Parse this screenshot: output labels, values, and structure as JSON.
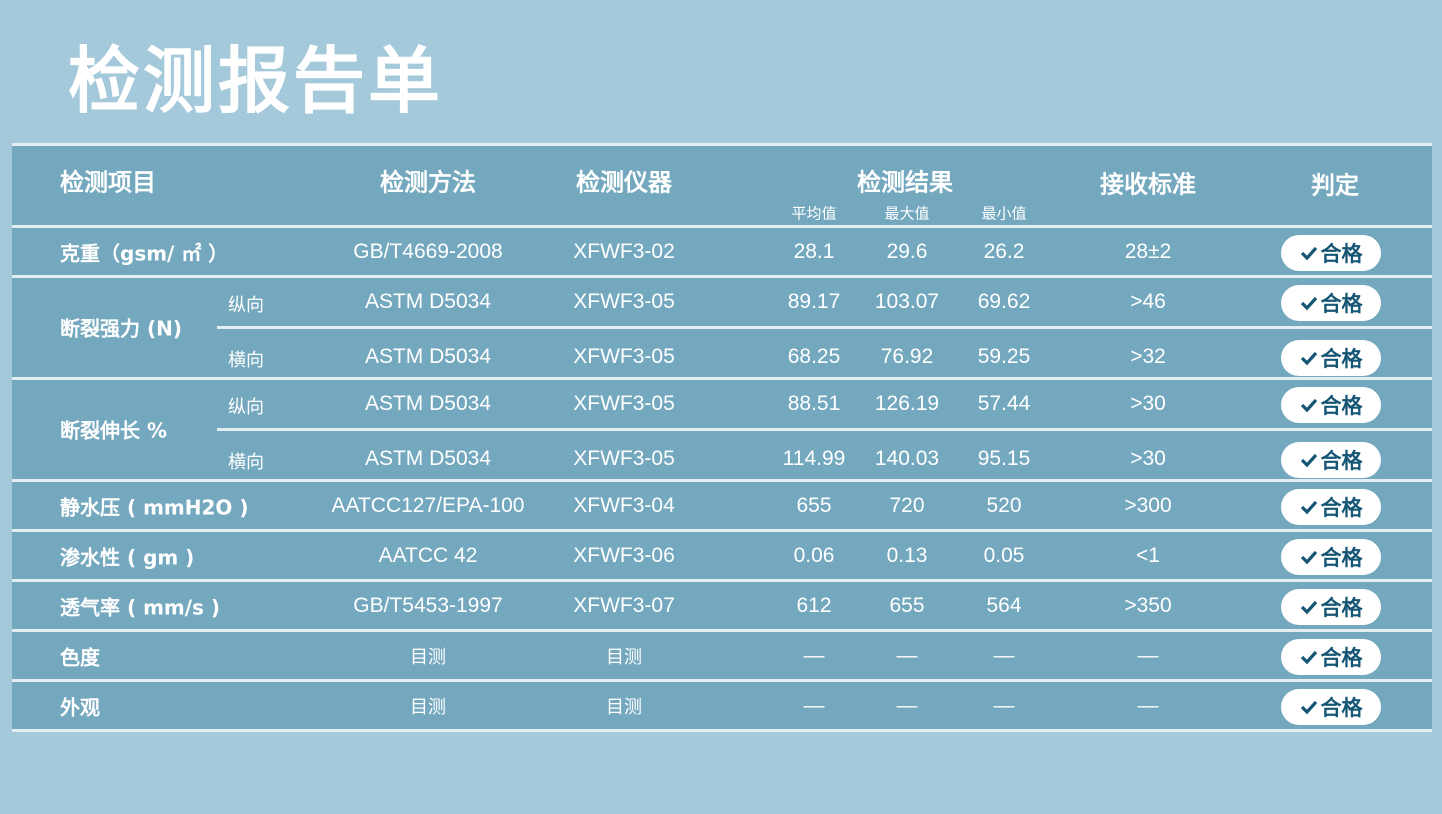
{
  "title": "检测报告单",
  "colors": {
    "background": "#a3c9da",
    "table": "#74a8bf",
    "badge_text": "#165675",
    "divider": "#e3edf2"
  },
  "header": {
    "item": "检测项目",
    "method": "检测方法",
    "instrument": "检测仪器",
    "result": "检测结果",
    "avg": "平均值",
    "max": "最大值",
    "min": "最小值",
    "standard": "接收标准",
    "verdict": "判定"
  },
  "verdict_icon": "check-icon",
  "rows": [
    {
      "item": "克重（gsm/ ㎡ ）",
      "method": "GB/T4669-2008",
      "instrument": "XFWF3-02",
      "avg": "28.1",
      "max": "29.6",
      "min": "26.2",
      "standard": "28±2",
      "verdict": "合格"
    },
    {
      "item": "断裂强力 (N)",
      "subrows": [
        {
          "sub": "纵向",
          "method": "ASTM D5034",
          "instrument": "XFWF3-05",
          "avg": "89.17",
          "max": "103.07",
          "min": "69.62",
          "standard": ">46",
          "verdict": "合格"
        },
        {
          "sub": "横向",
          "method": "ASTM D5034",
          "instrument": "XFWF3-05",
          "avg": "68.25",
          "max": "76.92",
          "min": "59.25",
          "standard": ">32",
          "verdict": "合格"
        }
      ]
    },
    {
      "item": "断裂伸长 %",
      "subrows": [
        {
          "sub": "纵向",
          "method": "ASTM D5034",
          "instrument": "XFWF3-05",
          "avg": "88.51",
          "max": "126.19",
          "min": "57.44",
          "standard": ">30",
          "verdict": "合格"
        },
        {
          "sub": "横向",
          "method": "ASTM D5034",
          "instrument": "XFWF3-05",
          "avg": "114.99",
          "max": "140.03",
          "min": "95.15",
          "standard": ">30",
          "verdict": "合格"
        }
      ]
    },
    {
      "item": "静水压 ( mmH2O )",
      "method": "AATCC127/EPA-100",
      "instrument": "XFWF3-04",
      "avg": "655",
      "max": "720",
      "min": "520",
      "standard": ">300",
      "verdict": "合格"
    },
    {
      "item": "渗水性 ( gm )",
      "method": "AATCC 42",
      "instrument": "XFWF3-06",
      "avg": "0.06",
      "max": "0.13",
      "min": "0.05",
      "standard": "<1",
      "verdict": "合格"
    },
    {
      "item": "透气率 ( mm/s )",
      "method": "GB/T5453-1997",
      "instrument": "XFWF3-07",
      "avg": "612",
      "max": "655",
      "min": "564",
      "standard": ">350",
      "verdict": "合格"
    },
    {
      "item": "色度",
      "method": "目测",
      "instrument": "目测",
      "avg": "—",
      "max": "—",
      "min": "—",
      "standard": "—",
      "verdict": "合格"
    },
    {
      "item": "外观",
      "method": "目测",
      "instrument": "目测",
      "avg": "—",
      "max": "—",
      "min": "—",
      "standard": "—",
      "verdict": "合格"
    }
  ]
}
